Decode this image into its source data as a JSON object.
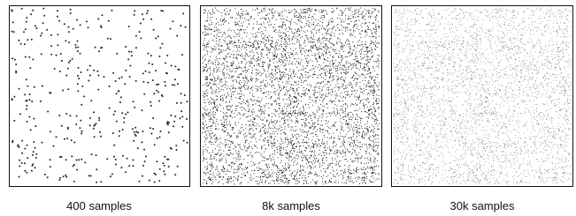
{
  "panels": [
    {
      "caption": "400 samples"
    },
    {
      "caption": "8k samples"
    },
    {
      "caption": "30k samples"
    }
  ]
}
